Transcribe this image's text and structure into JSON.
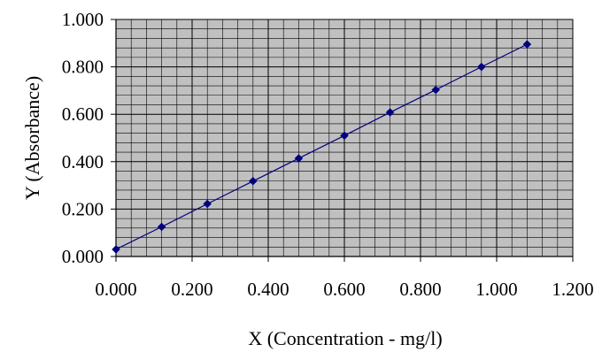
{
  "chart_data": {
    "type": "scatter",
    "title": "",
    "xlabel": "X (Concentration - mg/l)",
    "ylabel": "Y (Absorbance)",
    "xlim": [
      0,
      1.2
    ],
    "ylim": [
      0,
      1.0
    ],
    "x_ticks": [
      "0.000",
      "0.200",
      "0.400",
      "0.600",
      "0.800",
      "1.000",
      "1.200"
    ],
    "y_ticks": [
      "0.000",
      "0.200",
      "0.400",
      "0.600",
      "0.800",
      "1.000"
    ],
    "grid": true,
    "minor_grid": true,
    "legend": "none",
    "colors": {
      "plot_background": "#c0c0c0",
      "series": "#000080",
      "grid": "#000000"
    },
    "series": [
      {
        "marker": "diamond",
        "line": true,
        "x": [
          0.0,
          0.12,
          0.24,
          0.36,
          0.48,
          0.6,
          0.72,
          0.84,
          0.96,
          1.08
        ],
        "y": [
          0.03,
          0.125,
          0.222,
          0.318,
          0.414,
          0.51,
          0.608,
          0.703,
          0.8,
          0.895
        ]
      }
    ]
  }
}
